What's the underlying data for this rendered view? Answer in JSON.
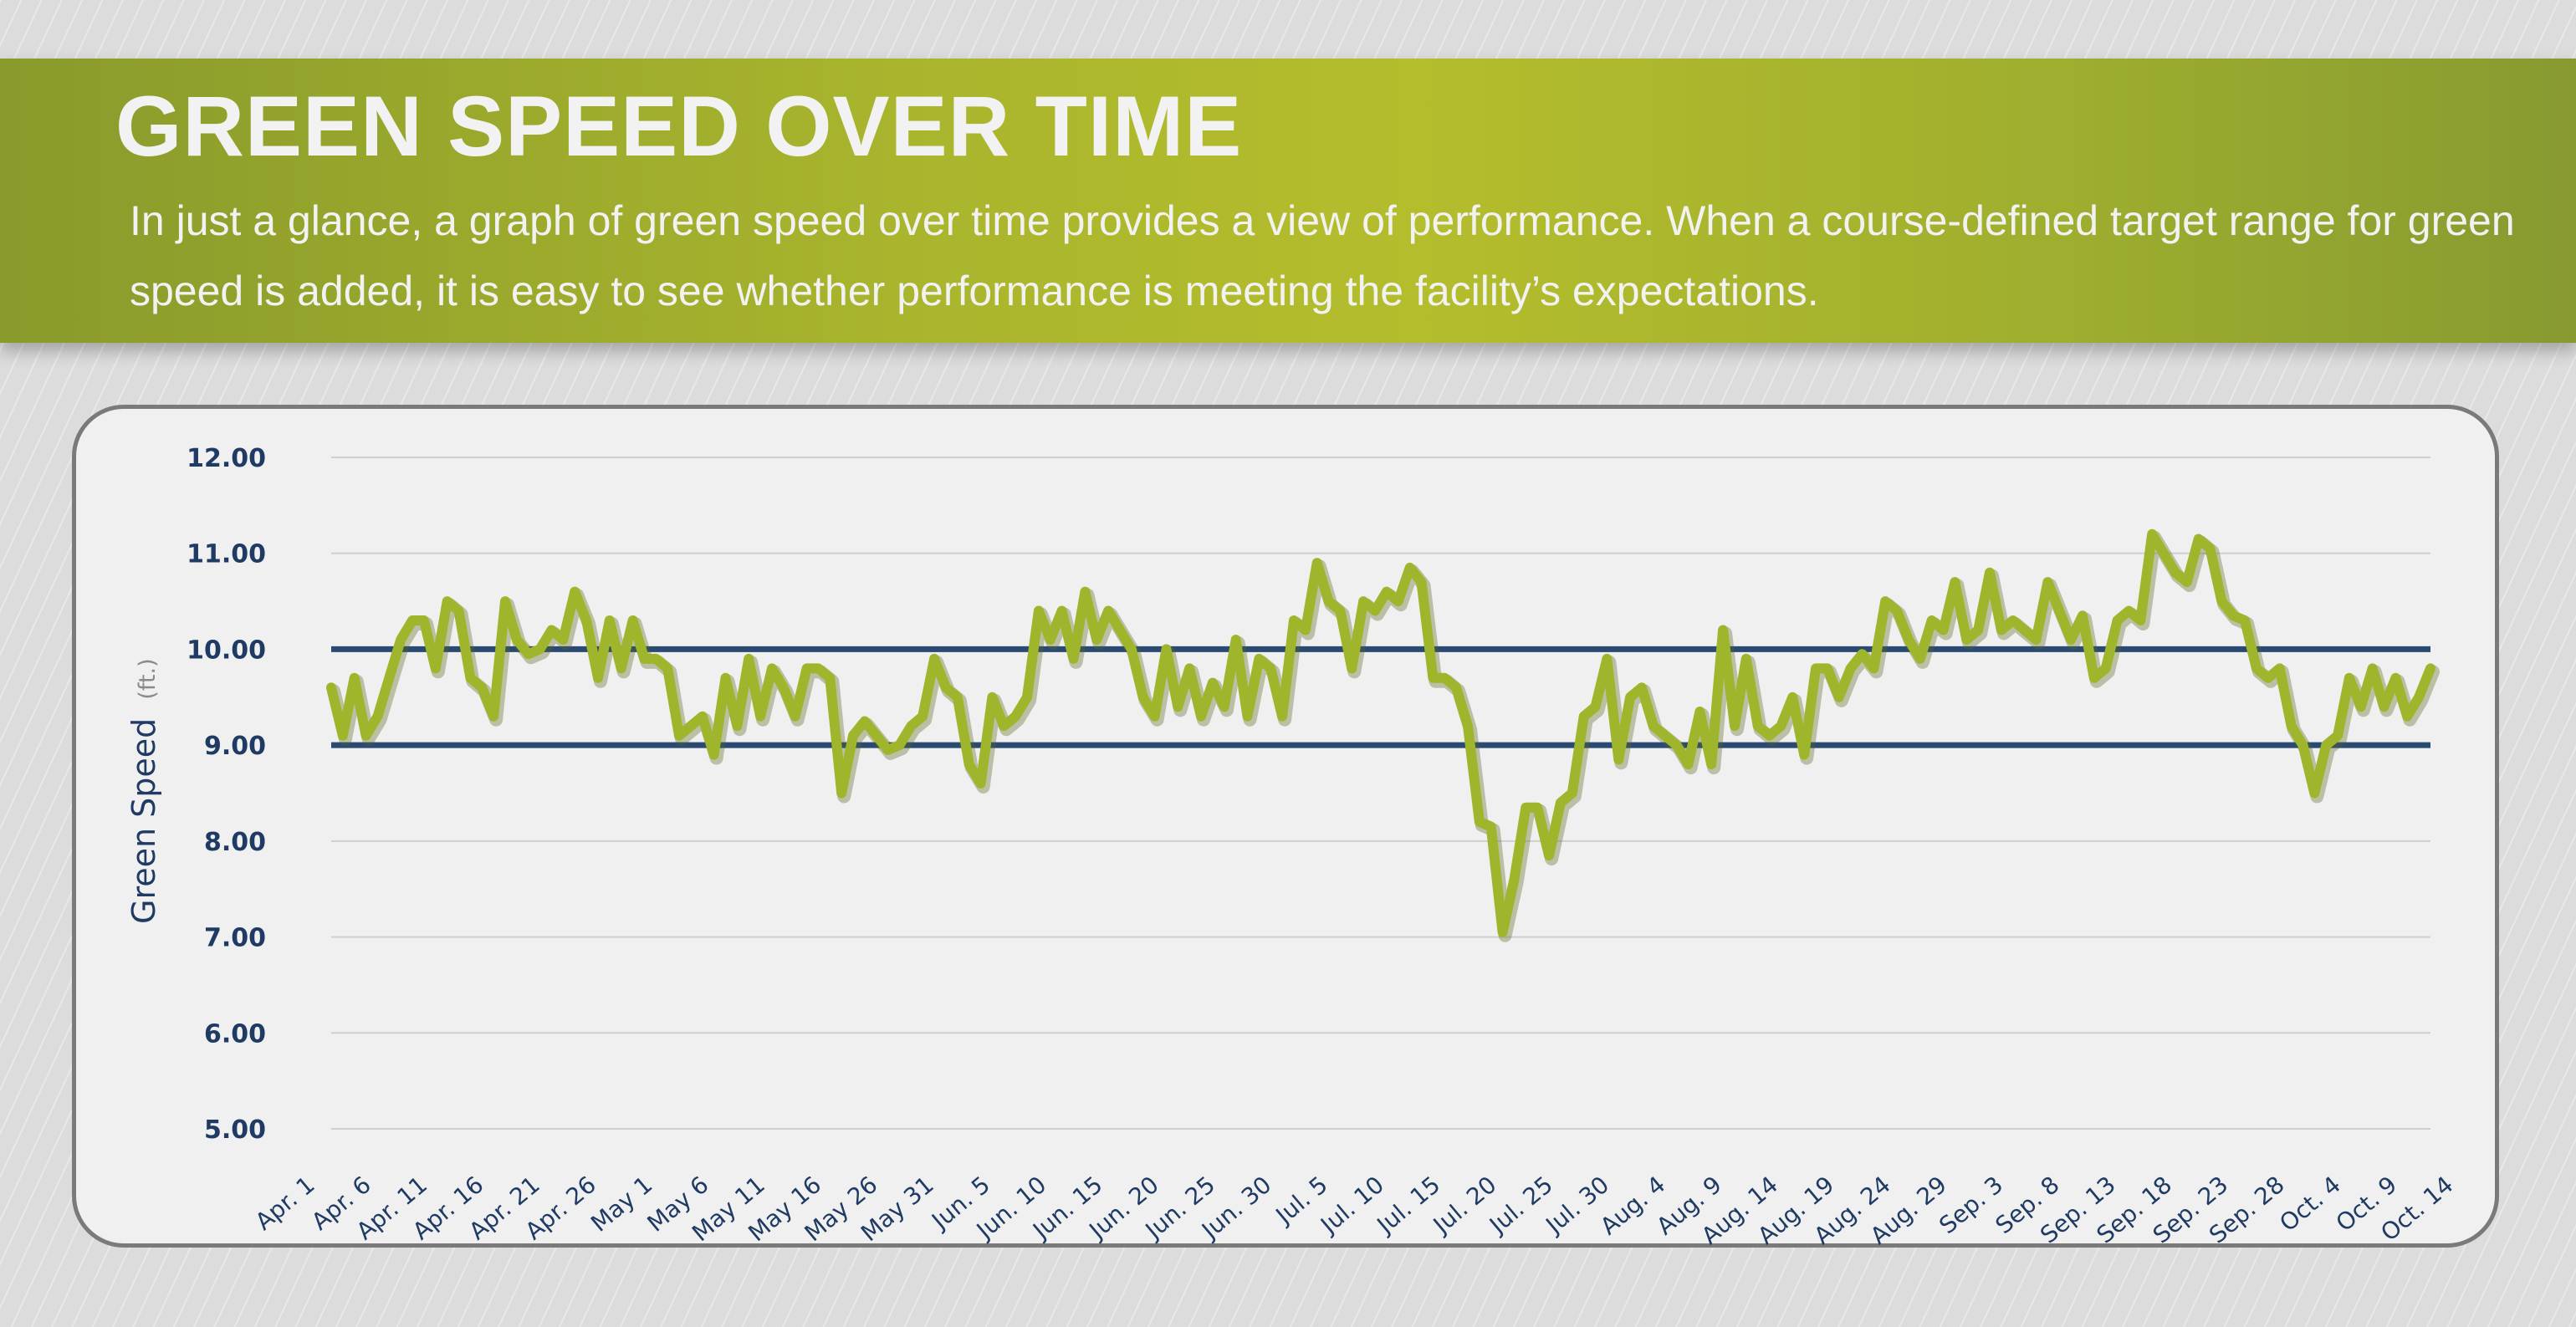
{
  "header": {
    "title": "GREEN SPEED OVER TIME",
    "subtitle": "In just a glance, a graph of green speed over time provides a view of performance. When a course-defined target range for green speed is added, it is easy to see whether performance is meeting the facility’s expectations."
  },
  "colors": {
    "banner": "#a9b52d",
    "series": "#9fb52b",
    "target_lines": "#2a4a72",
    "axis_text": "#1f3a63"
  },
  "chart_data": {
    "type": "line",
    "title": "GREEN SPEED OVER TIME",
    "ylabel": "Green Speed",
    "yunit": "(ft.)",
    "ylim": [
      5,
      12
    ],
    "yticks": [
      "5.00",
      "6.00",
      "7.00",
      "8.00",
      "9.00",
      "10.00",
      "11.00",
      "12.00"
    ],
    "grid": true,
    "target_range": [
      9.0,
      10.0
    ],
    "x_tick_labels": [
      "Apr. 1",
      "Apr. 6",
      "Apr. 11",
      "Apr. 16",
      "Apr. 21",
      "Apr. 26",
      "May 1",
      "May 6",
      "May 11",
      "May 16",
      "May 26",
      "May 31",
      "Jun. 5",
      "Jun. 10",
      "Jun. 15",
      "Jun. 20",
      "Jun. 25",
      "Jun. 30",
      "Jul. 5",
      "Jul. 10",
      "Jul. 15",
      "Jul. 20",
      "Jul. 25",
      "Jul. 30",
      "Aug. 4",
      "Aug. 9",
      "Aug. 14",
      "Aug. 19",
      "Aug. 24",
      "Aug. 29",
      "Sep. 3",
      "Sep. 8",
      "Sep. 13",
      "Sep. 18",
      "Sep. 23",
      "Sep. 28",
      "Oct. 4",
      "Oct. 9",
      "Oct. 14"
    ],
    "series": [
      {
        "values": [
          9.6,
          9.1,
          9.7,
          9.1,
          9.3,
          9.7,
          10.1,
          10.3,
          10.3,
          9.8,
          10.5,
          10.4,
          9.7,
          9.6,
          9.3,
          10.5,
          10.1,
          9.95,
          10.0,
          10.2,
          10.1,
          10.6,
          10.3,
          9.7,
          10.3,
          9.8,
          10.3,
          9.9,
          9.9,
          9.8,
          9.1,
          9.2,
          9.3,
          8.9,
          9.7,
          9.2,
          9.9,
          9.3,
          9.8,
          9.6,
          9.3,
          9.8,
          9.8,
          9.7,
          8.5,
          9.1,
          9.25,
          9.1,
          8.95,
          9.0,
          9.2,
          9.3,
          9.9,
          9.6,
          9.5,
          8.8,
          8.6,
          9.5,
          9.2,
          9.3,
          9.5,
          10.4,
          10.1,
          10.4,
          9.9,
          10.6,
          10.1,
          10.4,
          10.2,
          10.0,
          9.5,
          9.3,
          10.0,
          9.4,
          9.8,
          9.3,
          9.65,
          9.4,
          10.1,
          9.3,
          9.9,
          9.8,
          9.3,
          10.3,
          10.2,
          10.9,
          10.5,
          10.4,
          9.8,
          10.5,
          10.4,
          10.6,
          10.5,
          10.85,
          10.7,
          9.7,
          9.7,
          9.6,
          9.2,
          8.2,
          8.15,
          7.05,
          7.6,
          8.35,
          8.35,
          7.85,
          8.4,
          8.5,
          9.3,
          9.4,
          9.9,
          8.85,
          9.5,
          9.6,
          9.2,
          9.1,
          9.0,
          8.8,
          9.35,
          8.8,
          10.2,
          9.2,
          9.9,
          9.2,
          9.1,
          9.2,
          9.5,
          8.9,
          9.8,
          9.8,
          9.5,
          9.8,
          9.95,
          9.8,
          10.5,
          10.4,
          10.1,
          9.9,
          10.3,
          10.2,
          10.7,
          10.1,
          10.2,
          10.8,
          10.2,
          10.3,
          10.2,
          10.1,
          10.7,
          10.4,
          10.1,
          10.35,
          9.7,
          9.8,
          10.3,
          10.4,
          10.3,
          11.2,
          11.0,
          10.8,
          10.7,
          11.15,
          11.05,
          10.5,
          10.35,
          10.3,
          9.8,
          9.7,
          9.8,
          9.2,
          9.0,
          8.5,
          9.0,
          9.1,
          9.7,
          9.4,
          9.8,
          9.4,
          9.7,
          9.3,
          9.5,
          9.8
        ]
      }
    ]
  }
}
